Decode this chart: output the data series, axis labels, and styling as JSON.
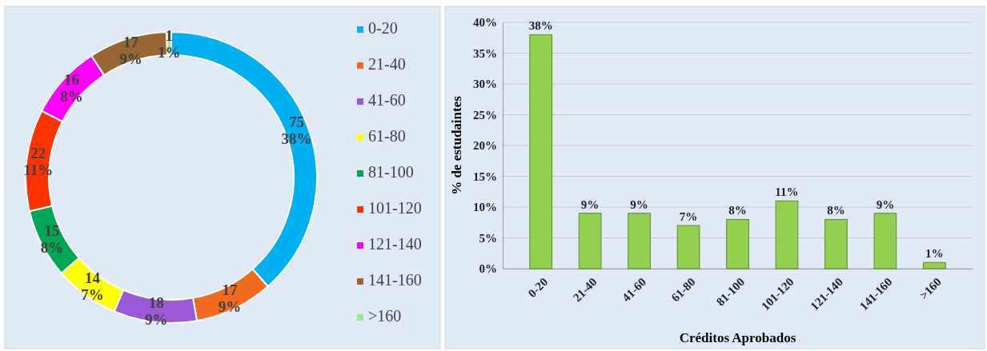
{
  "chart_data": [
    {
      "type": "donut",
      "categories": [
        "0-20",
        "21-40",
        "41-60",
        "61-80",
        "81-100",
        "101-120",
        "121-140",
        "141-160",
        ">160"
      ],
      "values": [
        75,
        17,
        18,
        14,
        15,
        22,
        16,
        17,
        1
      ],
      "colors": [
        "#00b0f0",
        "#f26b1d",
        "#9b59d6",
        "#ffff00",
        "#00a651",
        "#ff3300",
        "#ff00ff",
        "#996633",
        "#90ee90"
      ],
      "value_labels": [
        "75\n38%",
        "17\n9%",
        "18\n9%",
        "14\n7%",
        "15\n8%",
        "22\n11%",
        "16\n8%",
        "17\n9%",
        "1\n1%"
      ],
      "legend": "right"
    },
    {
      "type": "bar",
      "categories": [
        "0-20",
        "21-40",
        "41-60",
        "61-80",
        "81-100",
        "101-120",
        "121-140",
        "141-160",
        ">160"
      ],
      "values": [
        38,
        9,
        9,
        7,
        8,
        11,
        8,
        9,
        1
      ],
      "value_labels": [
        "38%",
        "9%",
        "9%",
        "7%",
        "8%",
        "11%",
        "8%",
        "9%",
        "1%"
      ],
      "color": "#92d050",
      "xlabel": "Créditos Aprobados",
      "ylabel": "% de estudaintes",
      "ylim": [
        0,
        40
      ],
      "yticks": [
        {
          "value": 0,
          "label": "0%"
        },
        {
          "value": 5,
          "label": "5%"
        },
        {
          "value": 10,
          "label": "10%"
        },
        {
          "value": 15,
          "label": "15%"
        },
        {
          "value": 20,
          "label": "20%"
        },
        {
          "value": 25,
          "label": "25%"
        },
        {
          "value": 30,
          "label": "30%"
        },
        {
          "value": 35,
          "label": "35%"
        },
        {
          "value": 40,
          "label": "40%"
        }
      ],
      "grid": "y"
    }
  ]
}
